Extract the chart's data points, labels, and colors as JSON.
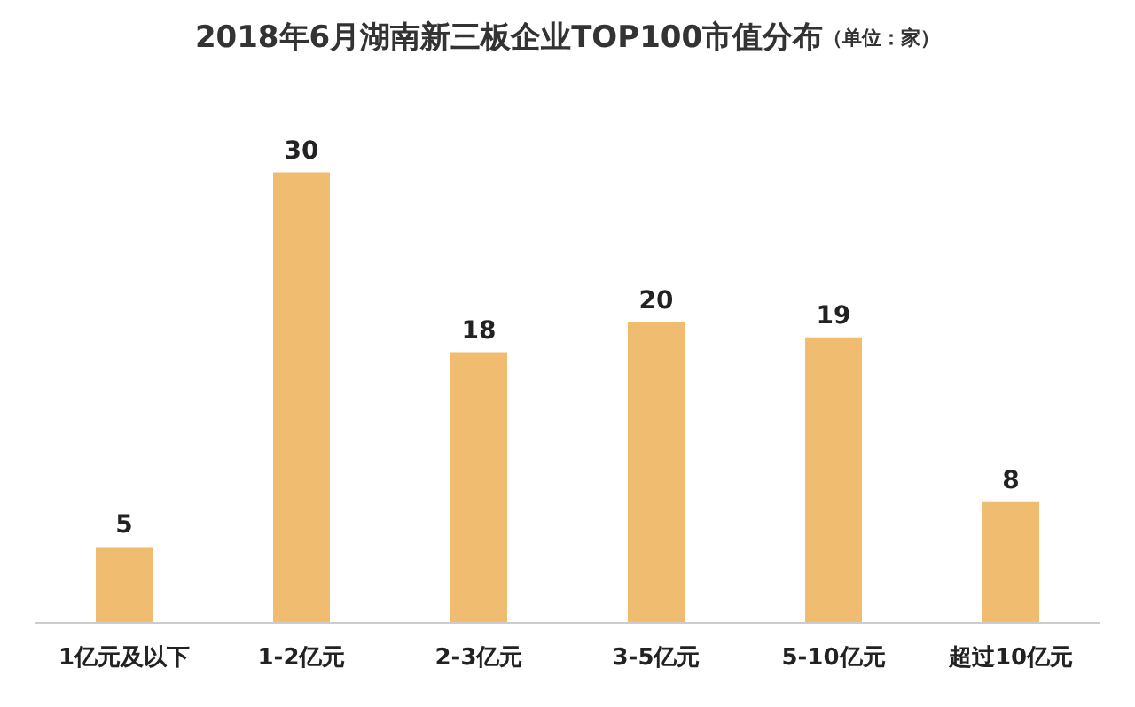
{
  "chart_data": {
    "type": "bar",
    "title": "2018年6月湖南新三板企业TOP100市值分布",
    "subtitle": "（单位：家）",
    "categories": [
      "1亿元及以下",
      "1-2亿元",
      "2-3亿元",
      "3-5亿元",
      "5-10亿元",
      "超过10亿元"
    ],
    "values": [
      5,
      30,
      18,
      20,
      19,
      8
    ],
    "color": "#f0bc6f",
    "data_labels": true
  }
}
